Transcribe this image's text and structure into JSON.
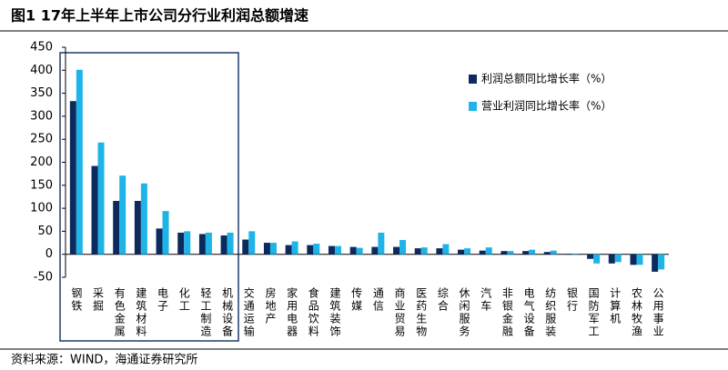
{
  "chart_data": {
    "type": "bar",
    "title": "图1  17年上半年上市公司分行业利润总额增速",
    "source": "资料来源：WIND，海通证券研究所",
    "categories": [
      "钢铁",
      "采掘",
      "有色金属",
      "建筑材料",
      "电子",
      "化工",
      "轻工制造",
      "机械设备",
      "交通运输",
      "房地产",
      "家用电器",
      "食品饮料",
      "建筑装饰",
      "传媒",
      "通信",
      "商业贸易",
      "医药生物",
      "综合",
      "休闲服务",
      "汽车",
      "非银金融",
      "电气设备",
      "纺织服装",
      "银行",
      "国防军工",
      "计算机",
      "农林牧渔",
      "公用事业"
    ],
    "series": [
      {
        "name": "利润总额同比增长率（%）",
        "color": "#0d2a5e",
        "values": [
          333,
          192,
          116,
          116,
          56,
          47,
          44,
          41,
          32,
          25,
          20,
          20,
          18,
          16,
          16,
          16,
          13,
          13,
          10,
          8,
          7,
          7,
          5,
          1,
          -10,
          -20,
          -23,
          -38
        ]
      },
      {
        "name": "营业利润同比增长率（%）",
        "color": "#1fb4e8",
        "values": [
          401,
          243,
          171,
          154,
          94,
          50,
          47,
          47,
          50,
          25,
          28,
          23,
          18,
          14,
          47,
          31,
          15,
          22,
          13,
          15,
          7,
          10,
          8,
          1,
          -20,
          -17,
          -23,
          -33
        ]
      }
    ],
    "ylim": [
      -50,
      450
    ],
    "yticks": [
      -50,
      0,
      50,
      100,
      150,
      200,
      250,
      300,
      350,
      400,
      450
    ]
  }
}
